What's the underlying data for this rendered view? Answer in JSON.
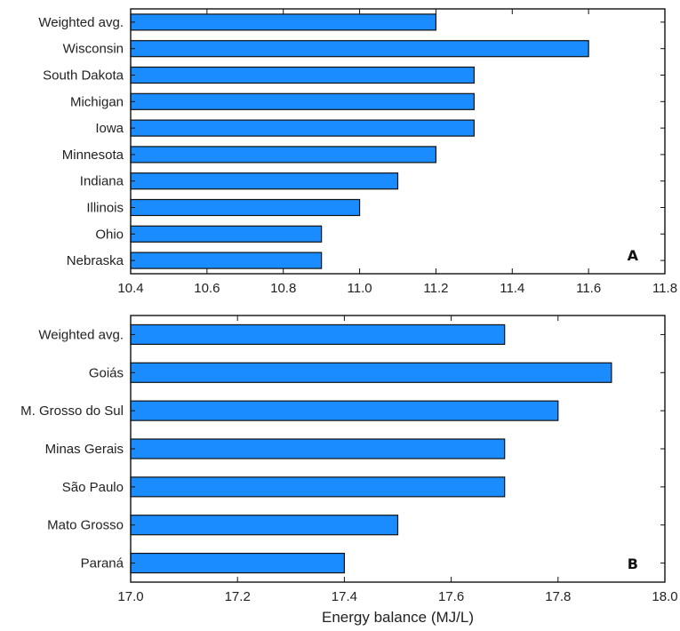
{
  "colors": {
    "bar_fill": "#1a8cff",
    "axis": "#111111"
  },
  "chart_data": [
    {
      "type": "bar",
      "orientation": "horizontal",
      "panel_label": "A",
      "categories": [
        "Weighted avg.",
        "Wisconsin",
        "South Dakota",
        "Michigan",
        "Iowa",
        "Minnesota",
        "Indiana",
        "Illinois",
        "Ohio",
        "Nebraska"
      ],
      "values": [
        11.2,
        11.6,
        11.3,
        11.3,
        11.3,
        11.2,
        11.1,
        11.0,
        10.9,
        10.9
      ],
      "xlim": [
        10.4,
        11.8
      ],
      "xticks": [
        "10.4",
        "10.6",
        "10.8",
        "11.0",
        "11.2",
        "11.4",
        "11.6",
        "11.8"
      ],
      "xlabel": "",
      "grid": false
    },
    {
      "type": "bar",
      "orientation": "horizontal",
      "panel_label": "B",
      "categories": [
        "Weighted avg.",
        "Goiás",
        "M. Grosso do Sul",
        "Minas Gerais",
        "São Paulo",
        "Mato Grosso",
        "Paraná"
      ],
      "values": [
        17.7,
        17.9,
        17.8,
        17.7,
        17.7,
        17.5,
        17.4
      ],
      "xlim": [
        17.0,
        18.0
      ],
      "xticks": [
        "17.0",
        "17.2",
        "17.4",
        "17.6",
        "17.8",
        "18.0"
      ],
      "xlabel": "Energy balance (MJ/L)",
      "grid": false
    }
  ]
}
